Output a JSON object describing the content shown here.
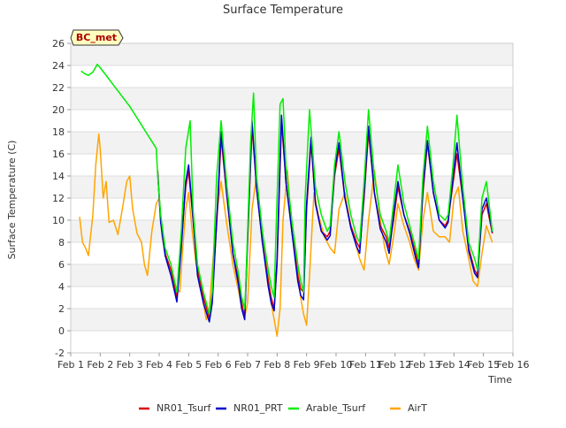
{
  "chart_data": {
    "type": "line",
    "title": "Surface Temperature",
    "xlabel": "Time",
    "ylabel": "Surface Temperature (C)",
    "ylim": [
      -2,
      26
    ],
    "yticks": [
      -2,
      0,
      2,
      4,
      6,
      8,
      10,
      12,
      14,
      16,
      18,
      20,
      22,
      24,
      26
    ],
    "xlim": [
      1,
      16
    ],
    "xticks": [
      {
        "v": 1,
        "label": "Feb 1"
      },
      {
        "v": 2,
        "label": "Feb 2"
      },
      {
        "v": 3,
        "label": "Feb 3"
      },
      {
        "v": 4,
        "label": "Feb 4"
      },
      {
        "v": 5,
        "label": "Feb 5"
      },
      {
        "v": 6,
        "label": "Feb 6"
      },
      {
        "v": 7,
        "label": "Feb 7"
      },
      {
        "v": 8,
        "label": "Feb 8"
      },
      {
        "v": 9,
        "label": "Feb 9"
      },
      {
        "v": 10,
        "label": "Feb 10"
      },
      {
        "v": 11,
        "label": "Feb 11"
      },
      {
        "v": 12,
        "label": "Feb 12"
      },
      {
        "v": 13,
        "label": "Feb 13"
      },
      {
        "v": 14,
        "label": "Feb 14"
      },
      {
        "v": 15,
        "label": "Feb 15"
      },
      {
        "v": 16,
        "label": "Feb 16"
      }
    ],
    "grid": true,
    "legend_position": "bottom",
    "annotation": "BC_met",
    "series": [
      {
        "name": "NR01_Tsurf",
        "color": "#dd0000",
        "x": [
          3.95,
          4.05,
          4.2,
          4.4,
          4.6,
          4.75,
          4.9,
          5.0,
          5.15,
          5.3,
          5.5,
          5.7,
          5.8,
          6.0,
          6.1,
          6.3,
          6.5,
          6.7,
          6.8,
          6.9,
          7.0,
          7.15,
          7.3,
          7.5,
          7.7,
          7.8,
          7.9,
          8.0,
          8.15,
          8.3,
          8.5,
          8.7,
          8.8,
          8.9,
          9.0,
          9.15,
          9.3,
          9.5,
          9.7,
          9.8,
          9.95,
          10.1,
          10.3,
          10.5,
          10.7,
          10.8,
          10.95,
          11.1,
          11.3,
          11.5,
          11.7,
          11.8,
          11.95,
          12.1,
          12.3,
          12.5,
          12.7,
          12.8,
          12.95,
          13.1,
          13.3,
          13.5,
          13.7,
          13.8,
          13.95,
          14.1,
          14.3,
          14.5,
          14.7,
          14.8,
          14.95,
          15.1,
          15.3
        ],
        "y": [
          14.5,
          10.0,
          7.0,
          5.5,
          3.0,
          8.0,
          13.0,
          14.5,
          10.0,
          5.5,
          3.0,
          1.2,
          3.0,
          12.0,
          17.5,
          12.0,
          7.0,
          4.5,
          2.5,
          1.2,
          8.0,
          18.5,
          13.0,
          8.0,
          4.5,
          3.0,
          2.0,
          6.0,
          19.0,
          13.5,
          9.0,
          5.0,
          3.8,
          3.5,
          11.0,
          17.0,
          11.5,
          9.0,
          8.5,
          9.0,
          14.0,
          16.5,
          12.0,
          9.5,
          8.0,
          7.5,
          12.0,
          18.0,
          12.5,
          9.5,
          8.5,
          7.5,
          10.0,
          13.0,
          10.5,
          9.0,
          7.0,
          6.0,
          12.5,
          17.0,
          12.5,
          10.0,
          9.5,
          10.0,
          13.0,
          16.0,
          12.0,
          7.5,
          5.5,
          5.0,
          10.5,
          11.5,
          8.8
        ]
      },
      {
        "name": "NR01_PRT",
        "color": "#0000cc",
        "x": [
          3.95,
          4.05,
          4.2,
          4.4,
          4.6,
          4.75,
          4.9,
          5.0,
          5.15,
          5.3,
          5.5,
          5.7,
          5.8,
          6.0,
          6.1,
          6.3,
          6.5,
          6.7,
          6.8,
          6.9,
          7.0,
          7.15,
          7.3,
          7.5,
          7.7,
          7.8,
          7.9,
          8.0,
          8.15,
          8.3,
          8.5,
          8.7,
          8.8,
          8.9,
          9.0,
          9.15,
          9.3,
          9.5,
          9.7,
          9.8,
          9.95,
          10.1,
          10.3,
          10.5,
          10.7,
          10.8,
          10.95,
          11.1,
          11.3,
          11.5,
          11.7,
          11.8,
          11.95,
          12.1,
          12.3,
          12.5,
          12.7,
          12.8,
          12.95,
          13.1,
          13.3,
          13.5,
          13.7,
          13.8,
          13.95,
          14.1,
          14.3,
          14.5,
          14.7,
          14.8,
          14.95,
          15.1,
          15.3
        ],
        "y": [
          14.3,
          9.8,
          6.8,
          5.0,
          2.6,
          7.5,
          13.5,
          15.0,
          10.2,
          5.0,
          2.5,
          0.8,
          2.5,
          12.5,
          18.0,
          12.2,
          7.0,
          4.0,
          2.0,
          1.0,
          8.5,
          19.0,
          13.0,
          8.0,
          4.0,
          2.5,
          1.8,
          6.5,
          19.5,
          13.5,
          9.0,
          4.5,
          3.2,
          2.8,
          11.5,
          17.5,
          11.5,
          9.0,
          8.2,
          8.6,
          14.5,
          17.0,
          12.0,
          9.3,
          7.6,
          7.0,
          12.5,
          18.5,
          12.5,
          9.2,
          8.0,
          7.0,
          10.5,
          13.5,
          10.5,
          8.8,
          6.6,
          5.7,
          13.0,
          17.2,
          12.5,
          10.0,
          9.3,
          9.8,
          13.5,
          17.0,
          12.0,
          7.2,
          5.2,
          4.8,
          11.0,
          12.0,
          8.9
        ]
      },
      {
        "name": "Arable_Tsurf",
        "color": "#00ee00",
        "x": [
          1.35,
          1.45,
          1.6,
          1.75,
          1.9,
          2.0,
          3.0,
          3.9,
          3.95,
          4.05,
          4.2,
          4.4,
          4.6,
          4.75,
          4.9,
          5.05,
          5.15,
          5.3,
          5.5,
          5.7,
          5.8,
          5.95,
          6.1,
          6.3,
          6.5,
          6.7,
          6.8,
          6.9,
          6.95,
          7.1,
          7.2,
          7.3,
          7.5,
          7.7,
          7.8,
          7.9,
          7.95,
          8.1,
          8.2,
          8.3,
          8.5,
          8.7,
          8.8,
          8.9,
          8.95,
          9.1,
          9.3,
          9.5,
          9.7,
          9.8,
          9.95,
          10.1,
          10.3,
          10.5,
          10.7,
          10.8,
          10.95,
          11.1,
          11.3,
          11.5,
          11.7,
          11.8,
          11.95,
          12.1,
          12.3,
          12.5,
          12.7,
          12.8,
          12.95,
          13.1,
          13.3,
          13.5,
          13.7,
          13.8,
          13.95,
          14.1,
          14.3,
          14.5,
          14.7,
          14.8,
          14.95,
          15.1,
          15.3
        ],
        "y": [
          23.5,
          23.3,
          23.1,
          23.4,
          24.1,
          23.8,
          20.3,
          16.5,
          14.0,
          10.5,
          7.5,
          6.0,
          3.5,
          9.0,
          16.5,
          19.0,
          11.0,
          6.0,
          3.5,
          1.5,
          3.5,
          14.0,
          19.0,
          13.0,
          8.0,
          5.0,
          3.0,
          2.0,
          5.0,
          17.0,
          21.5,
          14.0,
          9.0,
          5.5,
          4.0,
          3.0,
          8.0,
          20.5,
          21.0,
          15.0,
          10.0,
          6.0,
          4.5,
          3.5,
          12.0,
          20.0,
          13.0,
          10.5,
          9.0,
          9.5,
          15.0,
          18.0,
          13.5,
          10.5,
          8.5,
          8.0,
          13.5,
          20.0,
          14.0,
          10.5,
          9.0,
          8.0,
          11.5,
          15.0,
          11.5,
          9.5,
          7.5,
          6.5,
          14.0,
          18.5,
          13.5,
          10.5,
          10.0,
          10.5,
          14.5,
          19.5,
          13.0,
          8.0,
          6.5,
          5.5,
          12.0,
          13.5,
          9.0
        ]
      },
      {
        "name": "AirT",
        "color": "#ffa500",
        "x": [
          1.3,
          1.4,
          1.5,
          1.6,
          1.75,
          1.85,
          1.95,
          2.0,
          2.1,
          2.2,
          2.3,
          2.45,
          2.6,
          2.75,
          2.9,
          3.0,
          3.1,
          3.25,
          3.4,
          3.5,
          3.6,
          3.75,
          3.9,
          4.0,
          4.1,
          4.25,
          4.4,
          4.55,
          4.7,
          4.8,
          4.9,
          5.0,
          5.1,
          5.25,
          5.4,
          5.5,
          5.6,
          5.7,
          5.8,
          5.95,
          6.1,
          6.3,
          6.5,
          6.7,
          6.8,
          6.9,
          7.0,
          7.15,
          7.3,
          7.5,
          7.7,
          7.8,
          7.9,
          8.0,
          8.1,
          8.2,
          8.35,
          8.5,
          8.7,
          8.8,
          8.9,
          9.0,
          9.1,
          9.25,
          9.4,
          9.6,
          9.8,
          9.95,
          10.1,
          10.3,
          10.5,
          10.7,
          10.8,
          10.95,
          11.1,
          11.3,
          11.5,
          11.65,
          11.8,
          11.95,
          12.1,
          12.3,
          12.5,
          12.65,
          12.8,
          12.95,
          13.1,
          13.3,
          13.5,
          13.7,
          13.85,
          14.0,
          14.15,
          14.3,
          14.5,
          14.65,
          14.8,
          14.95,
          15.1,
          15.3
        ],
        "y": [
          10.3,
          8.0,
          7.5,
          6.8,
          10.5,
          15.0,
          17.8,
          16.5,
          12.0,
          13.5,
          9.8,
          10.0,
          8.7,
          11.0,
          13.5,
          14.0,
          11.0,
          8.8,
          8.0,
          6.0,
          5.0,
          9.0,
          11.5,
          12.0,
          8.5,
          6.5,
          5.5,
          4.0,
          3.5,
          7.5,
          11.0,
          12.5,
          9.5,
          6.0,
          4.5,
          2.5,
          1.0,
          2.0,
          5.5,
          10.5,
          13.5,
          9.5,
          6.0,
          3.5,
          2.0,
          1.3,
          2.5,
          11.0,
          14.0,
          8.5,
          5.0,
          2.5,
          1.0,
          -0.5,
          2.0,
          10.0,
          14.5,
          9.0,
          5.5,
          3.0,
          1.5,
          0.5,
          5.0,
          12.5,
          10.5,
          8.5,
          7.5,
          7.0,
          11.0,
          12.5,
          9.5,
          7.5,
          6.5,
          5.5,
          10.0,
          14.5,
          10.0,
          7.5,
          6.0,
          8.5,
          11.5,
          9.5,
          8.0,
          6.5,
          5.5,
          10.0,
          12.5,
          9.0,
          8.5,
          8.5,
          8.0,
          12.0,
          13.0,
          9.0,
          6.5,
          4.5,
          4.0,
          7.0,
          9.5,
          8.0
        ]
      }
    ]
  }
}
